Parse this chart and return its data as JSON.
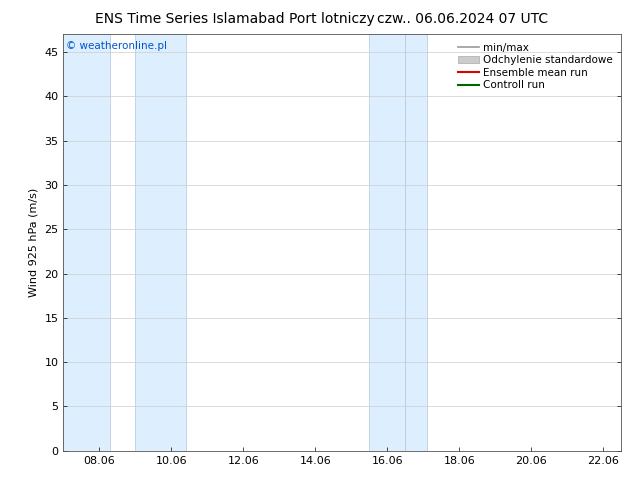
{
  "title_left": "ENS Time Series Islamabad Port lotniczy",
  "title_right": "czw.. 06.06.2024 07 UTC",
  "ylabel": "Wind 925 hPa (m/s)",
  "watermark": "© weatheronline.pl",
  "xmin": 7.0,
  "xmax": 22.5,
  "ymin": 0,
  "ymax": 47,
  "yticks": [
    0,
    5,
    10,
    15,
    20,
    25,
    30,
    35,
    40,
    45
  ],
  "xtick_labels": [
    "08.06",
    "10.06",
    "12.06",
    "14.06",
    "16.06",
    "18.06",
    "20.06",
    "22.06"
  ],
  "xtick_positions": [
    8.0,
    10.0,
    12.0,
    14.0,
    16.0,
    18.0,
    20.0,
    22.0
  ],
  "shaded_regions": [
    {
      "xmin": 7.0,
      "xmax": 8.3,
      "color": "#ddeeff",
      "edgecolor": "#b0c8e0"
    },
    {
      "xmin": 9.0,
      "xmax": 10.4,
      "color": "#ddeeff",
      "edgecolor": "#b0c8e0"
    },
    {
      "xmin": 15.5,
      "xmax": 16.5,
      "color": "#ddeeff",
      "edgecolor": "#b0c8e0"
    },
    {
      "xmin": 16.5,
      "xmax": 17.1,
      "color": "#ddeeff",
      "edgecolor": "#b0c8e0"
    }
  ],
  "legend_entries": [
    {
      "label": "min/max",
      "color": "#999999",
      "lw": 1.2,
      "patch": false
    },
    {
      "label": "Odchylenie standardowe",
      "color": "#cccccc",
      "lw": 7,
      "patch": true
    },
    {
      "label": "Ensemble mean run",
      "color": "#dd0000",
      "lw": 1.5,
      "patch": false
    },
    {
      "label": "Controll run",
      "color": "#006600",
      "lw": 1.5,
      "patch": false
    }
  ],
  "bg_color": "#ffffff",
  "plot_bg_color": "#ffffff",
  "title_fontsize": 10,
  "axis_label_fontsize": 8,
  "tick_fontsize": 8,
  "watermark_color": "#0055cc",
  "watermark_fontsize": 7.5,
  "legend_fontsize": 7.5
}
